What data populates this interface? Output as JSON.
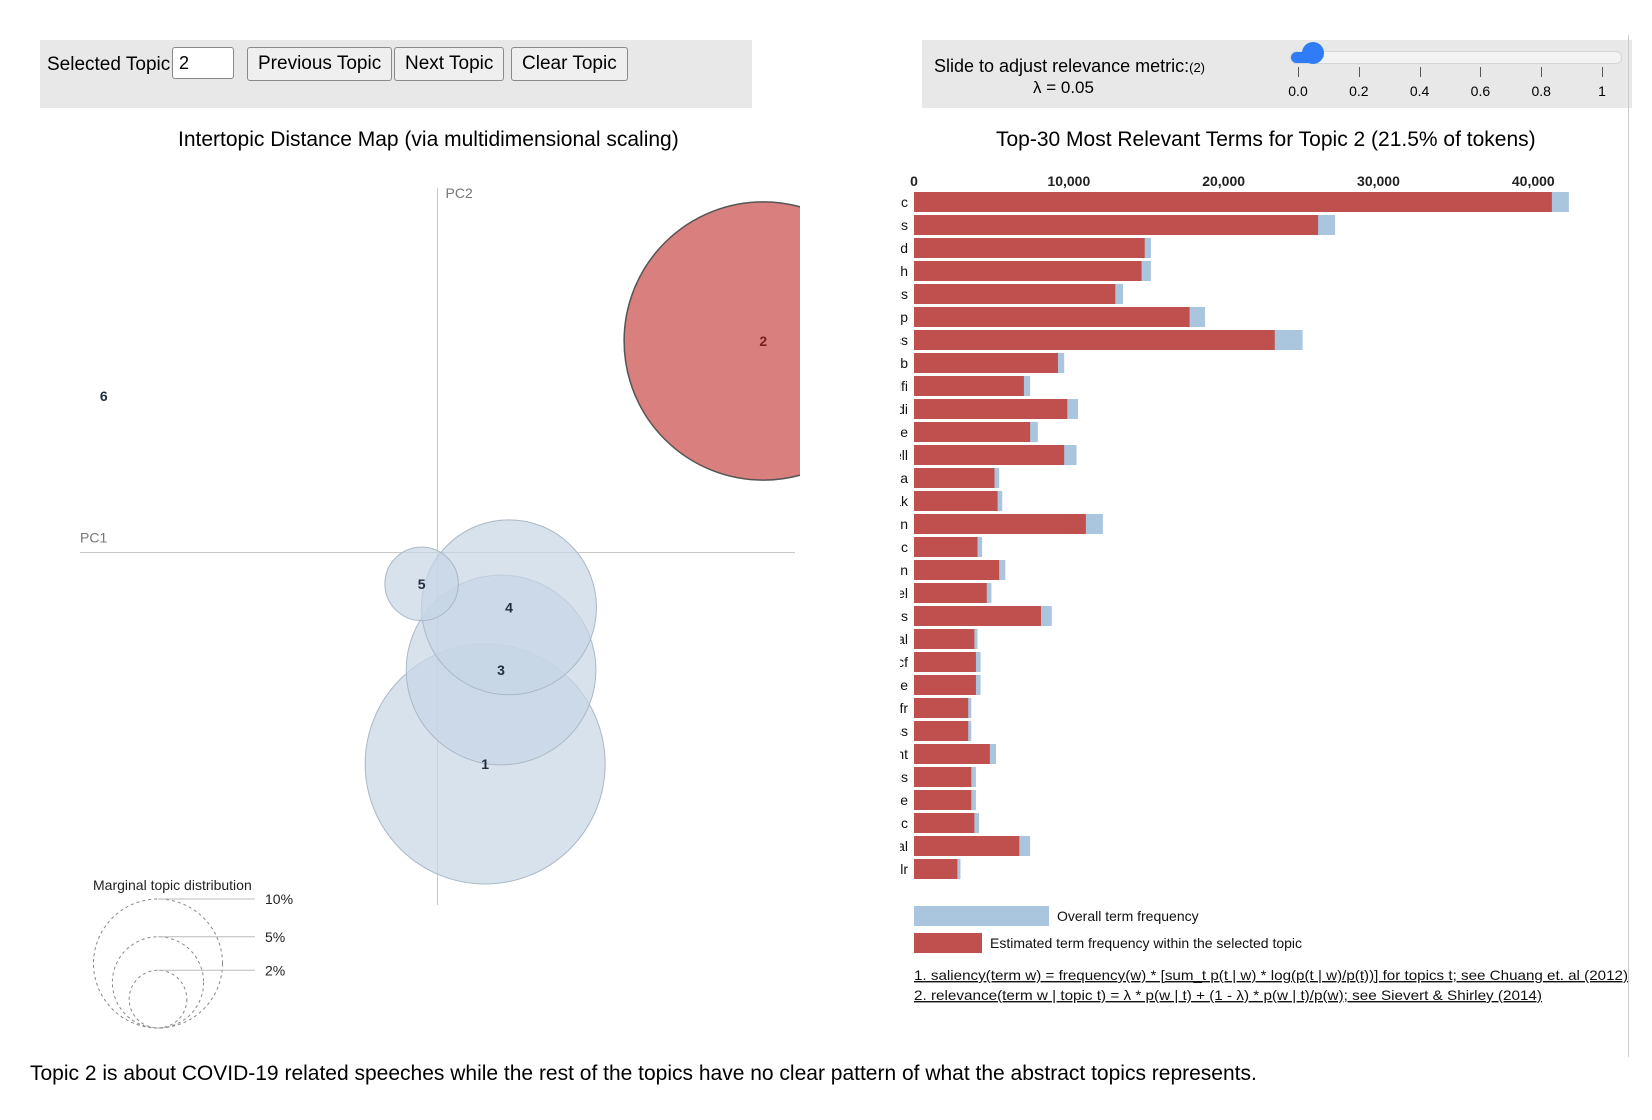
{
  "controls": {
    "selected_label": "Selected Topic:",
    "selected_value": "2",
    "prev_label": "Previous Topic",
    "next_label": "Next Topic",
    "clear_label": "Clear Topic",
    "slider_label": "Slide to adjust relevance metric:",
    "slider_note": "(2)",
    "lambda_text": "λ = 0.05",
    "lambda": 0.05,
    "slider_ticks": [
      "0.0",
      "0.2",
      "0.4",
      "0.6",
      "0.8",
      "1"
    ]
  },
  "left_title": "Intertopic Distance Map (via multidimensional scaling)",
  "right_title": "Top-30 Most Relevant Terms for Topic 2 (21.5% of tokens)",
  "caption": "Topic 2 is about COVID-19 related speeches while the rest of the topics have no clear pattern of what the abstract topics represents.",
  "colors": {
    "overall": "#aac6de",
    "selected": "#c0504d",
    "selected_circle": "#d97f7e",
    "circle": "#c6d6e6"
  },
  "chart_data": [
    {
      "type": "scatter",
      "title": "Intertopic Distance Map (via multidimensional scaling)",
      "xlabel": "PC1",
      "ylabel": "PC2",
      "xlim": [
        -0.45,
        0.45
      ],
      "ylim": [
        -0.45,
        0.45
      ],
      "selected_topic": 2,
      "topics": [
        {
          "id": "1",
          "x": 0.06,
          "y": -0.27,
          "size_pct": 16
        },
        {
          "id": "2",
          "x": 0.41,
          "y": 0.27,
          "size_pct": 21.5
        },
        {
          "id": "3",
          "x": 0.08,
          "y": -0.15,
          "size_pct": 10
        },
        {
          "id": "4",
          "x": 0.09,
          "y": -0.07,
          "size_pct": 8.5
        },
        {
          "id": "5",
          "x": -0.02,
          "y": -0.04,
          "size_pct": 1.5
        },
        {
          "id": "6",
          "x": -0.42,
          "y": 0.2,
          "size_pct": 0
        }
      ],
      "legend": {
        "title": "Marginal topic distribution",
        "items": [
          {
            "label": "2%",
            "pct": 2
          },
          {
            "label": "5%",
            "pct": 5
          },
          {
            "label": "10%",
            "pct": 10
          }
        ]
      }
    },
    {
      "type": "bar",
      "orientation": "horizontal",
      "title": "Top-30 Most Relevant Terms for Topic 2 (21.5% of tokens)",
      "xlim": [
        0,
        42500
      ],
      "xticks": [
        0,
        10000,
        20000,
        30000,
        40000
      ],
      "xtick_labels": [
        "0",
        "10,000",
        "20,000",
        "30,000",
        "40,000"
      ],
      "categories": [
        "pandemic",
        "virus",
        "covid",
        "fintech",
        "coronavirus",
        "ccp",
        "ilcs",
        "ccyb",
        "cdfi",
        "mdi",
        "vaccine",
        "chair_powell",
        "cra",
        "coronavirus_outbreak",
        "discrimination",
        "covid_pandemic",
        "stablecoin",
        "prepandemic_level",
        "cdfis",
        "interim_final",
        "smccf",
        "climaterelate",
        "sofr",
        "hardship_across",
        "listens_event",
        "causing_tremendous",
        "rural_communitie",
        "prepandemic",
        "digital",
        "lolr"
      ],
      "series": [
        {
          "name": "Overall term frequency",
          "values": [
            42300,
            27200,
            15300,
            15300,
            13500,
            18800,
            25100,
            9700,
            7500,
            10600,
            8000,
            10500,
            5500,
            5700,
            12200,
            4400,
            5900,
            5000,
            8900,
            4100,
            4300,
            4300,
            3700,
            3700,
            5300,
            4000,
            4000,
            4200,
            7500,
            3000
          ]
        },
        {
          "name": "Estimated term frequency within the selected topic",
          "values": [
            41200,
            26100,
            14900,
            14700,
            13000,
            17800,
            23300,
            9300,
            7100,
            9900,
            7500,
            9700,
            5200,
            5400,
            11100,
            4100,
            5500,
            4700,
            8200,
            3900,
            4000,
            4000,
            3500,
            3500,
            4900,
            3700,
            3700,
            3900,
            6800,
            2800
          ]
        }
      ],
      "legend": [
        {
          "label": "Overall term frequency",
          "color": "#aac6de"
        },
        {
          "label": "Estimated term frequency within the selected topic",
          "color": "#c0504d"
        }
      ],
      "footnotes": [
        "1. saliency(term w) = frequency(w) * [sum_t p(t | w) * log(p(t | w)/p(t))] for topics t; see Chuang et. al (2012)",
        "2. relevance(term w | topic t) = λ * p(w | t) + (1 - λ) * p(w | t)/p(w); see Sievert & Shirley (2014)"
      ]
    }
  ]
}
